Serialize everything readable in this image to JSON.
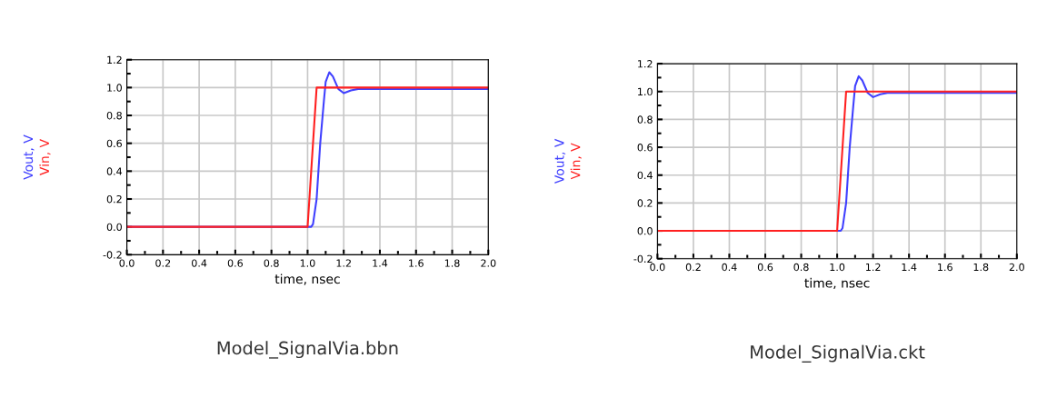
{
  "chart_data": [
    {
      "type": "line",
      "title": "Model_SignalVia.bbn",
      "xlabel": "time, nsec",
      "xlim": [
        0,
        2
      ],
      "ylim": [
        -0.2,
        1.2
      ],
      "xticks": [
        {
          "value": 0,
          "label": "0.0"
        },
        {
          "value": 0.2,
          "label": "0.2"
        },
        {
          "value": 0.4,
          "label": "0.4"
        },
        {
          "value": 0.6,
          "label": "0.6"
        },
        {
          "value": 0.8,
          "label": "0.8"
        },
        {
          "value": 1,
          "label": "1.0"
        },
        {
          "value": 1.2,
          "label": "1.2"
        },
        {
          "value": 1.4,
          "label": "1.4"
        },
        {
          "value": 1.6,
          "label": "1.6"
        },
        {
          "value": 1.8,
          "label": "1.8"
        },
        {
          "value": 2,
          "label": "2.0"
        }
      ],
      "yticks": [
        {
          "value": -0.2,
          "label": "-0.2"
        },
        {
          "value": 0,
          "label": "0.0"
        },
        {
          "value": 0.2,
          "label": "0.2"
        },
        {
          "value": 0.4,
          "label": "0.4"
        },
        {
          "value": 0.6,
          "label": "0.6"
        },
        {
          "value": 0.8,
          "label": "0.8"
        },
        {
          "value": 1,
          "label": "1.0"
        },
        {
          "value": 1.2,
          "label": "1.2"
        }
      ],
      "grid": true,
      "series": [
        {
          "name": "Vout, V",
          "color": "#4040ff",
          "x": [
            0,
            1.02,
            1.03,
            1.05,
            1.07,
            1.09,
            1.1,
            1.12,
            1.14,
            1.17,
            1.2,
            1.24,
            1.28,
            2
          ],
          "values": [
            0,
            0,
            0.02,
            0.2,
            0.6,
            0.9,
            1.04,
            1.11,
            1.08,
            0.99,
            0.96,
            0.98,
            0.99,
            0.99
          ]
        },
        {
          "name": "Vin, V",
          "color": "#ff2020",
          "x": [
            0,
            1.0,
            1.05,
            2
          ],
          "values": [
            0,
            0,
            1.0,
            1.0
          ]
        }
      ]
    },
    {
      "type": "line",
      "title": "Model_SignalVia.ckt",
      "xlabel": "time, nsec",
      "xlim": [
        0,
        2
      ],
      "ylim": [
        -0.2,
        1.2
      ],
      "xticks": [
        {
          "value": 0,
          "label": "0.0"
        },
        {
          "value": 0.2,
          "label": "0.2"
        },
        {
          "value": 0.4,
          "label": "0.4"
        },
        {
          "value": 0.6,
          "label": "0.6"
        },
        {
          "value": 0.8,
          "label": "0.8"
        },
        {
          "value": 1,
          "label": "1.0"
        },
        {
          "value": 1.2,
          "label": "1.2"
        },
        {
          "value": 1.4,
          "label": "1.4"
        },
        {
          "value": 1.6,
          "label": "1.6"
        },
        {
          "value": 1.8,
          "label": "1.8"
        },
        {
          "value": 2,
          "label": "2.0"
        }
      ],
      "yticks": [
        {
          "value": -0.2,
          "label": "-0.2"
        },
        {
          "value": 0,
          "label": "0.0"
        },
        {
          "value": 0.2,
          "label": "0.2"
        },
        {
          "value": 0.4,
          "label": "0.4"
        },
        {
          "value": 0.6,
          "label": "0.6"
        },
        {
          "value": 0.8,
          "label": "0.8"
        },
        {
          "value": 1,
          "label": "1.0"
        },
        {
          "value": 1.2,
          "label": "1.2"
        }
      ],
      "grid": true,
      "series": [
        {
          "name": "Vout, V",
          "color": "#4040ff",
          "x": [
            0,
            1.02,
            1.03,
            1.05,
            1.07,
            1.09,
            1.1,
            1.12,
            1.14,
            1.17,
            1.2,
            1.24,
            1.28,
            2
          ],
          "values": [
            0,
            0,
            0.02,
            0.2,
            0.6,
            0.9,
            1.04,
            1.11,
            1.08,
            0.99,
            0.96,
            0.98,
            0.99,
            0.99
          ]
        },
        {
          "name": "Vin, V",
          "color": "#ff2020",
          "x": [
            0,
            1.0,
            1.05,
            2
          ],
          "values": [
            0,
            0,
            1.0,
            1.0
          ]
        }
      ]
    }
  ]
}
